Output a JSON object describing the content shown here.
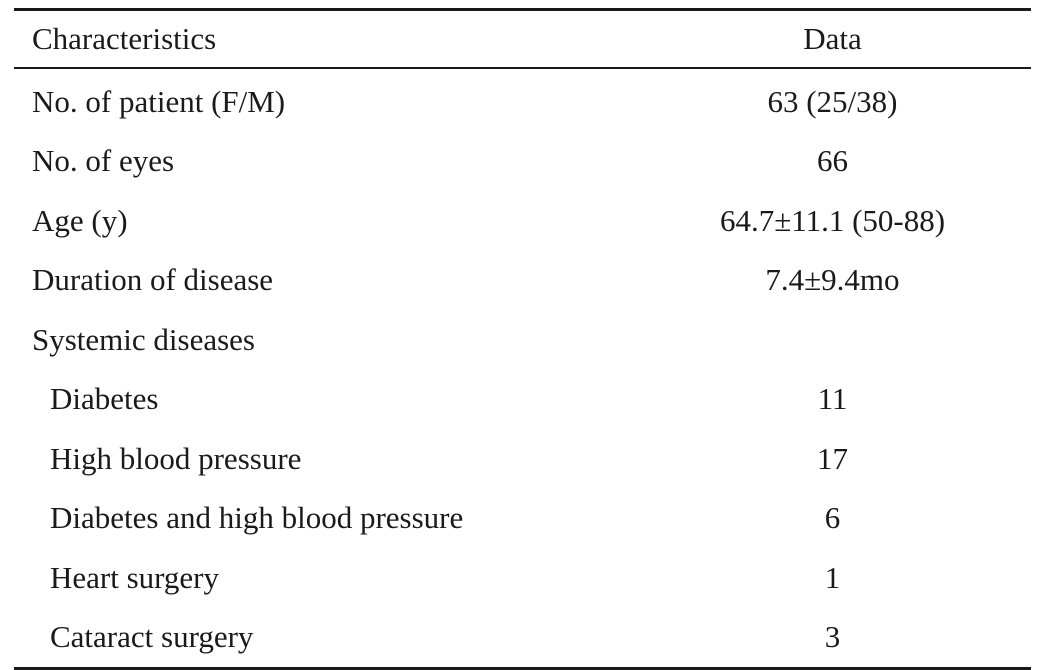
{
  "table": {
    "headers": {
      "characteristics": "Characteristics",
      "data": "Data"
    },
    "rows": [
      {
        "label": "No. of patient (F/M)",
        "value": "63 (25/38)",
        "indent": false
      },
      {
        "label": "No. of eyes",
        "value": "66",
        "indent": false
      },
      {
        "label": "Age (y)",
        "value": "64.7±11.1 (50-88)",
        "indent": false
      },
      {
        "label": "Duration of disease",
        "value": "7.4±9.4mo",
        "indent": false
      },
      {
        "label": "Systemic diseases",
        "value": "",
        "indent": false
      },
      {
        "label": "Diabetes",
        "value": "11",
        "indent": true
      },
      {
        "label": "High blood pressure",
        "value": "17",
        "indent": true
      },
      {
        "label": "Diabetes and high blood pressure",
        "value": "6",
        "indent": true
      },
      {
        "label": "Heart surgery",
        "value": "1",
        "indent": true
      },
      {
        "label": "Cataract surgery",
        "value": "3",
        "indent": true
      }
    ]
  }
}
